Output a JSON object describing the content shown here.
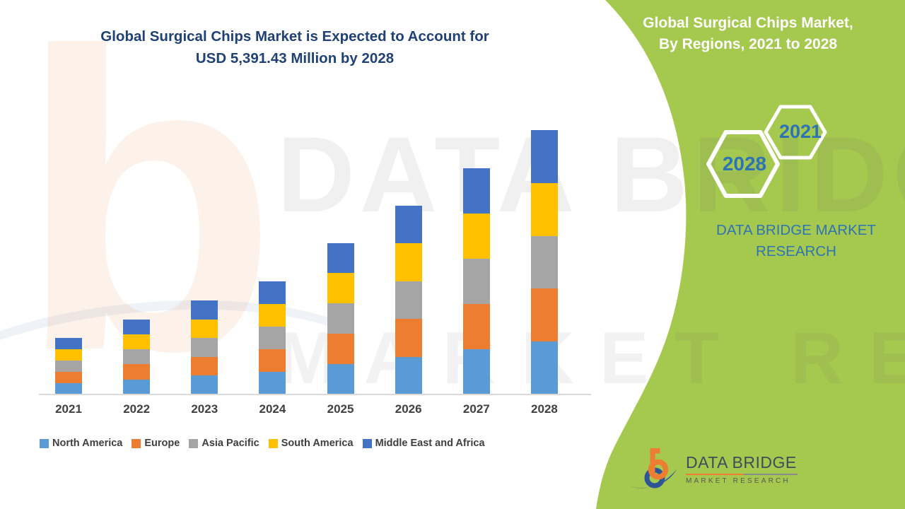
{
  "main_title": {
    "line1": "Global Surgical Chips Market is Expected to Account for",
    "line2": "USD 5,391.43 Million by 2028"
  },
  "side_panel": {
    "title_line1": "Global Surgical Chips Market,",
    "title_line2": "By Regions, 2021 to 2028",
    "hexagon_years": {
      "start": "2021",
      "end": "2028"
    },
    "brand_text": "DATA BRIDGE MARKET RESEARCH"
  },
  "watermark": {
    "glyph": "b",
    "line1": "DATA BRIDGE",
    "line2": "MARKET RESEARCH"
  },
  "logo": {
    "name": "DATA BRIDGE",
    "subtitle": "MARKET RESEARCH"
  },
  "theme": {
    "green": "#A5C84F",
    "navy": "#1F4173",
    "blue": "#2E74B5",
    "axis_line": "#D9D9D9",
    "label_text": "#404040"
  },
  "chart_data": {
    "type": "bar",
    "stacked": true,
    "title": "Global Surgical Chips Market is Expected to Account for USD 5,391.43 Million by 2028",
    "subtitle": "Global Surgical Chips Market, By Regions, 2021 to 2028",
    "unit": "USD Million",
    "categories": [
      "2021",
      "2022",
      "2023",
      "2024",
      "2025",
      "2026",
      "2027",
      "2028"
    ],
    "series": [
      {
        "name": "North America",
        "color": "#5B9BD5",
        "values": [
          232,
          307,
          384,
          463,
          618,
          771,
          924,
          1078.29
        ]
      },
      {
        "name": "Europe",
        "color": "#ED7D31",
        "values": [
          232,
          307,
          384,
          463,
          618,
          771,
          924,
          1078.29
        ]
      },
      {
        "name": "Asia Pacific",
        "color": "#A5A5A5",
        "values": [
          232,
          307,
          384,
          463,
          618,
          771,
          924,
          1078.29
        ]
      },
      {
        "name": "South America",
        "color": "#FFC000",
        "values": [
          232,
          307,
          384,
          463,
          618,
          771,
          924,
          1078.28
        ]
      },
      {
        "name": "Middle East and Africa",
        "color": "#4472C4",
        "values": [
          232,
          307,
          384,
          463,
          618,
          771,
          924,
          1078.28
        ]
      }
    ],
    "totals": [
      1160,
      1535,
      1920,
      2315,
      3090,
      3855,
      4620,
      5391.43
    ],
    "highlight_total_2028": "USD 5,391.43 Million",
    "xlabel": "",
    "ylabel": "",
    "ylim": [
      0,
      5600
    ],
    "gridlines": false,
    "y_axis_visible": false,
    "legend_position": "bottom"
  }
}
